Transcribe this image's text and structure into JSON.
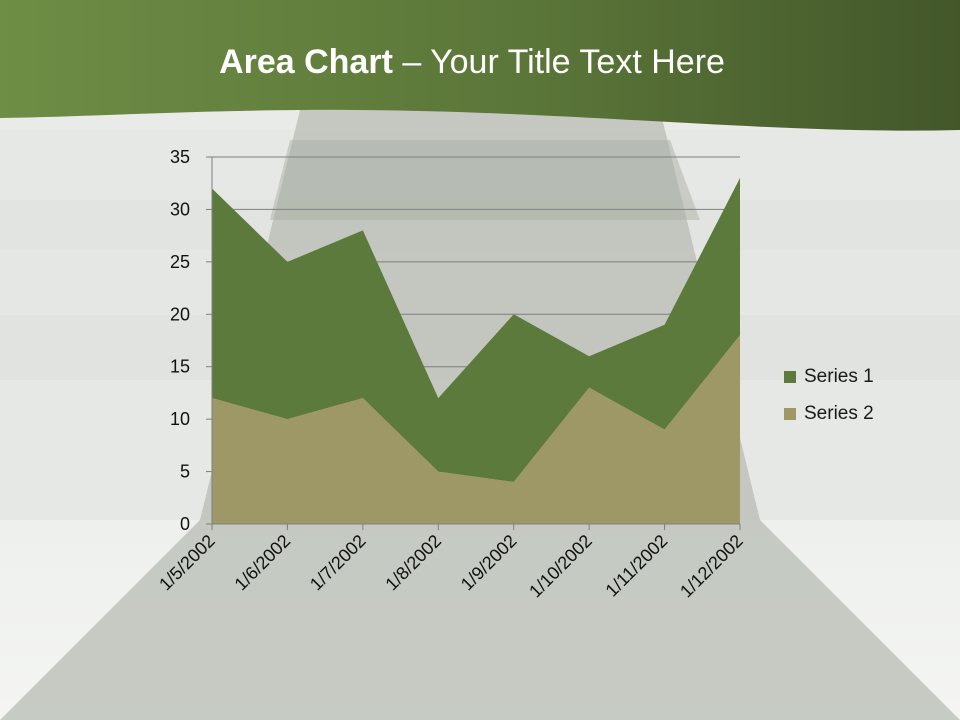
{
  "slide": {
    "title_bold": "Area Chart",
    "title_rest": " – Your Title Text Here"
  },
  "colors": {
    "banner_dark": "#4a6030",
    "banner_light": "#6e8d45",
    "series1": "#5d7a3d",
    "series2": "#9d9866"
  },
  "chart_data": {
    "type": "area",
    "stacked": true,
    "categories": [
      "1/5/2002",
      "1/6/2002",
      "1/7/2002",
      "1/8/2002",
      "1/9/2002",
      "1/10/2002",
      "1/11/2002",
      "1/12/2002"
    ],
    "series": [
      {
        "name": "Series 1",
        "values": [
          20,
          15,
          16,
          7,
          16,
          3,
          10,
          15
        ],
        "color": "#5d7a3d"
      },
      {
        "name": "Series 2",
        "values": [
          12,
          10,
          12,
          5,
          4,
          13,
          9,
          18
        ],
        "color": "#9d9866"
      }
    ],
    "ylim": [
      0,
      35
    ],
    "yticks": [
      0,
      5,
      10,
      15,
      20,
      25,
      30,
      35
    ],
    "grid": true,
    "legend_position": "right"
  }
}
